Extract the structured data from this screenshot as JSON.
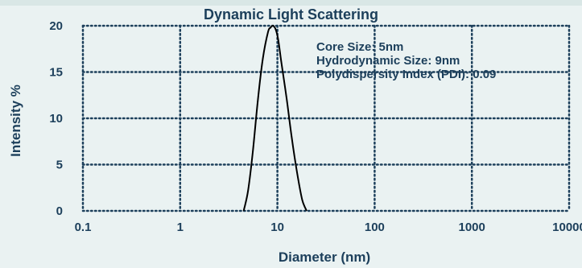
{
  "colors": {
    "background": "#eaf2f2",
    "text": "#1c3f5b",
    "grid": "#1c3f5b",
    "line": "#000000"
  },
  "chart_data": {
    "type": "line",
    "title": "Dynamic Light Scattering",
    "xlabel": "Diameter (nm)",
    "ylabel": "Intensity %",
    "xscale": "log",
    "xlim": [
      0.1,
      10000
    ],
    "ylim": [
      0,
      20
    ],
    "xticks": [
      "0.1",
      "1",
      "10",
      "100",
      "1000",
      "10000"
    ],
    "yticks": [
      "0",
      "5",
      "10",
      "15",
      "20"
    ],
    "grid": true,
    "annotations": [
      "Core Size: 5nm",
      "Hydrodynamic Size: 9nm",
      "Polydispersity Index (PDI): 0.09"
    ],
    "series": [
      {
        "x": [
          4.5,
          5,
          5.6,
          6.3,
          7.1,
          8,
          8.5,
          9,
          9.6,
          10.2,
          11,
          12.5,
          14,
          16,
          18,
          20
        ],
        "y": [
          0,
          2.2,
          6.5,
          12,
          16.5,
          19.3,
          19.8,
          20,
          19.6,
          18.5,
          16,
          12,
          8,
          4,
          1.2,
          0
        ]
      }
    ]
  }
}
